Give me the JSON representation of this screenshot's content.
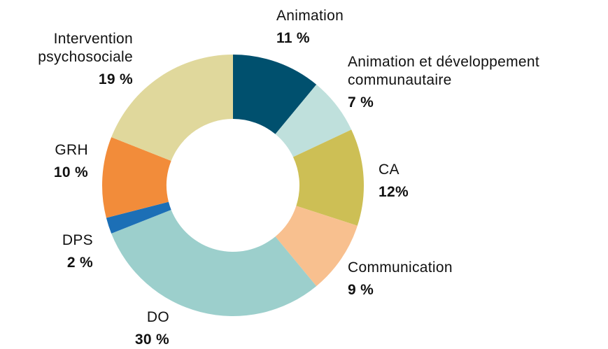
{
  "chart_data": {
    "type": "donut",
    "categories": [
      "Animation",
      "Animation et développement communautaire",
      "CA",
      "Communication",
      "DO",
      "DPS",
      "GRH",
      "Intervention psychosociale"
    ],
    "values": [
      11,
      7,
      12,
      9,
      30,
      2,
      10,
      19
    ],
    "value_labels": [
      "11 %",
      "7 %",
      "12%",
      "9 %",
      "30 %",
      "2 %",
      "10 %",
      "19 %"
    ],
    "colors": [
      "#00506e",
      "#bfe0dc",
      "#cdbf55",
      "#f8c08f",
      "#9ccfcc",
      "#1c6fb6",
      "#f28c3a",
      "#e0d89c"
    ]
  }
}
